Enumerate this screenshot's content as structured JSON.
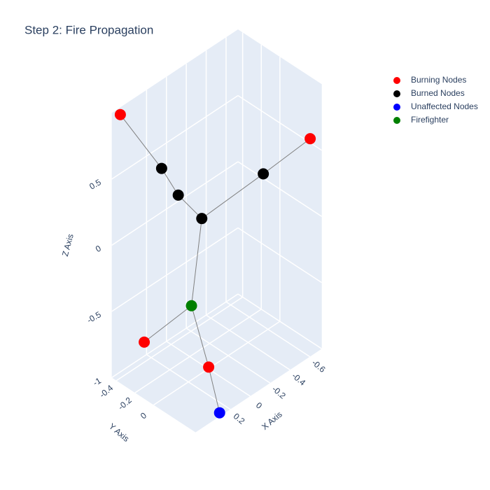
{
  "chart_data": {
    "type": "scatter3d",
    "title": "Step 2: Fire Propagation",
    "xaxis_title": "X Axis",
    "yaxis_title": "Y Axis",
    "zaxis_title": "Z Axis",
    "xlim": [
      -0.72,
      0.55
    ],
    "ylim": [
      -0.45,
      0.45
    ],
    "zlim": [
      -1,
      1
    ],
    "xticks": [
      -0.6,
      -0.4,
      -0.2,
      0,
      0.2
    ],
    "yticks": [
      -0.4,
      -0.2,
      0
    ],
    "zticks": [
      -1,
      -0.5,
      0,
      0.5
    ],
    "grid": true,
    "legend": "top-right",
    "lines": {
      "color": "#808080",
      "x": [
        0.3,
        0.34,
        null,
        0.34,
        0.32,
        null,
        0.32,
        0.52,
        null,
        0.3,
        -0.45,
        null,
        -0.45,
        -0.65,
        null,
        0.3,
        0.31,
        null,
        0.31,
        0.42,
        null,
        0.31,
        0.39,
        null,
        0.39,
        0.28,
        null
      ],
      "y": [
        0.25,
        0.04,
        null,
        0.04,
        -0.16,
        null,
        -0.16,
        -0.39,
        null,
        0.25,
        0.11,
        null,
        0.11,
        0.4,
        null,
        0.25,
        0.15,
        null,
        0.15,
        -0.24,
        null,
        0.15,
        0.42,
        null,
        0.42,
        0.42,
        null
      ],
      "z": [
        0.4,
        0.5,
        null,
        0.5,
        0.6,
        null,
        0.6,
        1.0,
        null,
        0.4,
        0.3,
        null,
        0.3,
        0.6,
        null,
        0.4,
        -0.3,
        null,
        -0.3,
        -0.7,
        null,
        -0.3,
        -0.6,
        null,
        -0.6,
        -1.0,
        null
      ]
    },
    "series": [
      {
        "name": "Burning Nodes",
        "color": "#ff0000",
        "x": [
          0.52,
          -0.65,
          0.42,
          0.39
        ],
        "y": [
          -0.39,
          0.4,
          -0.24,
          0.42
        ],
        "z": [
          1.0,
          0.6,
          -0.7,
          -0.6
        ]
      },
      {
        "name": "Burned Nodes",
        "color": "#000000",
        "x": [
          0.3,
          0.34,
          0.32,
          -0.45
        ],
        "y": [
          0.25,
          0.04,
          -0.16,
          0.11
        ],
        "z": [
          0.4,
          0.5,
          0.6,
          0.3
        ]
      },
      {
        "name": "Unaffected Nodes",
        "color": "#0000ff",
        "x": [
          0.28
        ],
        "y": [
          0.42
        ],
        "z": [
          -1.0
        ]
      },
      {
        "name": "Firefighter",
        "color": "#008000",
        "x": [
          0.31
        ],
        "y": [
          0.15
        ],
        "z": [
          -0.3
        ]
      }
    ]
  }
}
